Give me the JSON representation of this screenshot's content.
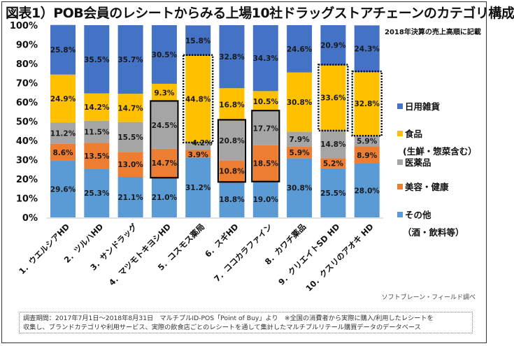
{
  "title": "図表1）POB会員のレシートからみる上場10社ドラッグストアチェーンのカテゴリ構成",
  "subnote": "2018年決算の売上高順に記載",
  "credit": "ソフトブレーン・フィールド調べ",
  "note_lines": [
    "調査期間：2017年7月1日～2018年8月31日　マルチプルID-POS「Point of Buy」より　※全国の消費者から実際に購入/利用したレシートを",
    "収集し、ブランドカテゴリや利用サービス、実際の飲食店ごとのレシートを通して集計したマルチプルリテール購買データのデータベース"
  ],
  "legend": [
    {
      "label": "日用雑貨",
      "sub": "",
      "color": "#4472C4"
    },
    {
      "label": "食品",
      "sub": "(生鮮・惣菜含む）",
      "color": "#FFC000"
    },
    {
      "label": "医薬品",
      "sub": "",
      "color": "#A5A5A5"
    },
    {
      "label": "美容・健康",
      "sub": "",
      "color": "#ED7D31"
    },
    {
      "label": "その他",
      "sub": "（酒・飲料等）",
      "color": "#5B9BD5"
    }
  ],
  "chart_data": {
    "type": "bar",
    "stacked": true,
    "title": "図表1）POB会員のレシートからみる上場10社ドラッグストアチェーンのカテゴリ構成",
    "ylim": [
      0,
      100
    ],
    "yticks": [
      "0%",
      "10%",
      "20%",
      "30%",
      "40%",
      "50%",
      "60%",
      "70%",
      "80%",
      "90%",
      "100%"
    ],
    "categories": [
      "1．ウエルシアHD",
      "2．ツルハHD",
      "3．サンドラッグ",
      "4．マツモトキヨシHD",
      "5．コスモス薬局",
      "6．スギHD",
      "7．ココカラファイン",
      "8．カワチ薬品",
      "9．クリエイトSD HD",
      "10．クスリのアオキ HD"
    ],
    "series": [
      {
        "name": "その他（酒・飲料等）",
        "color": "#5B9BD5",
        "values": [
          29.6,
          25.3,
          21.1,
          21.0,
          31.2,
          18.8,
          19.0,
          30.8,
          25.5,
          28.0
        ],
        "labels": [
          "29.6%",
          "25.3%",
          "21.1%",
          "21.0%",
          "31.2%",
          "18.8%",
          "19.0%",
          "30.8%",
          "25.5%",
          "28.0%"
        ]
      },
      {
        "name": "美容・健康",
        "color": "#ED7D31",
        "values": [
          8.6,
          13.5,
          13.0,
          14.7,
          3.9,
          10.8,
          18.5,
          5.9,
          5.2,
          8.9
        ],
        "labels": [
          "8.6%",
          "13.5%",
          "13.0%",
          "14.7%",
          "3.9%",
          "10.8%",
          "18.5%",
          "5.9%",
          "5.2%",
          "8.9%"
        ]
      },
      {
        "name": "医薬品",
        "color": "#A5A5A5",
        "values": [
          11.2,
          11.5,
          15.5,
          24.5,
          4.2,
          20.8,
          17.7,
          7.9,
          14.8,
          5.9
        ],
        "labels": [
          "11.2%",
          "11.5%",
          "15.5%",
          "24.5%",
          "4.2%",
          "20.8%",
          "17.7%",
          "7.9%",
          "14.8%",
          "5.9%"
        ]
      },
      {
        "name": "食品(生鮮・惣菜含む）",
        "color": "#FFC000",
        "values": [
          24.9,
          14.2,
          14.7,
          9.3,
          44.8,
          16.8,
          10.5,
          30.8,
          33.6,
          32.8
        ],
        "labels": [
          "24.9%",
          "14.2%",
          "14.7%",
          "9.3%",
          "44.8%",
          "16.8%",
          "10.5%",
          "30.8%",
          "33.6%",
          "32.8%"
        ]
      },
      {
        "name": "日用雑貨",
        "color": "#4472C4",
        "values": [
          25.8,
          35.5,
          35.7,
          30.5,
          15.8,
          32.8,
          34.3,
          24.6,
          20.9,
          24.3
        ],
        "labels": [
          "25.8%",
          "35.5%",
          "35.7%",
          "30.5%",
          "15.8%",
          "32.8%",
          "34.3%",
          "24.6%",
          "20.9%",
          "24.3%"
        ]
      }
    ],
    "highlights": [
      {
        "bar": 3,
        "series": [
          1,
          2
        ],
        "style": "solid"
      },
      {
        "bar": 5,
        "series": [
          1,
          2
        ],
        "style": "solid"
      },
      {
        "bar": 6,
        "series": [
          1,
          2
        ],
        "style": "solid"
      },
      {
        "bar": 4,
        "series": [
          3
        ],
        "style": "dotted"
      },
      {
        "bar": 8,
        "series": [
          3
        ],
        "style": "dotted"
      },
      {
        "bar": 9,
        "series": [
          3
        ],
        "style": "dotted"
      }
    ],
    "legend_position": "right"
  }
}
